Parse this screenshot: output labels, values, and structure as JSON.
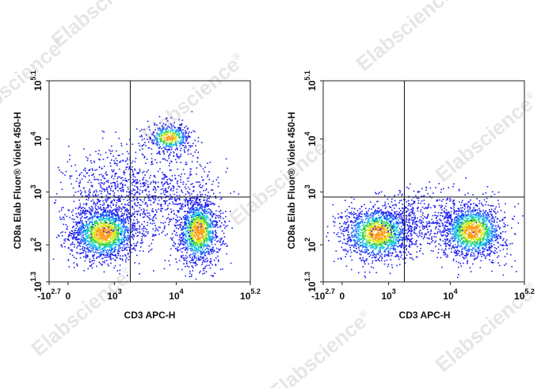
{
  "watermark": {
    "text": "Elabscience",
    "mark": "®"
  },
  "chart_data": [
    {
      "type": "scatter",
      "xlabel": "CD3 APC-H",
      "ylabel": "CD8a Elab Fluor® Violet 450-H",
      "x_scale": "biexponential",
      "y_scale": "log",
      "xlim": [
        -500,
        158489
      ],
      "ylim": [
        20,
        125893
      ],
      "x_ticks": [
        {
          "value": -500,
          "label": "-10",
          "exp": "2.7"
        },
        {
          "value": 0,
          "label": "0",
          "exp": ""
        },
        {
          "value": 1000,
          "label": "10",
          "exp": "3"
        },
        {
          "value": 10000,
          "label": "10",
          "exp": "4"
        },
        {
          "value": 158489,
          "label": "10",
          "exp": "5.2"
        }
      ],
      "y_ticks": [
        {
          "value": 20,
          "label": "10",
          "exp": "1.3"
        },
        {
          "value": 100,
          "label": "10",
          "exp": "2"
        },
        {
          "value": 1000,
          "label": "10",
          "exp": "3"
        },
        {
          "value": 10000,
          "label": "10",
          "exp": "4"
        },
        {
          "value": 125893,
          "label": "10",
          "exp": "5.1"
        }
      ],
      "gates": {
        "x": 1800,
        "y": 800
      },
      "populations": [
        {
          "x": 300,
          "y": 160,
          "density": "high"
        },
        {
          "x": 13000,
          "y": 170,
          "density": "high"
        },
        {
          "x": 6000,
          "y": 11000,
          "density": "medium"
        }
      ],
      "grid": false,
      "legend": "none"
    },
    {
      "type": "scatter",
      "xlabel": "CD3 APC-H",
      "ylabel": "CD8a Elab Fluor® Violet 450-H",
      "x_scale": "biexponential",
      "y_scale": "log",
      "xlim": [
        -500,
        158489
      ],
      "ylim": [
        20,
        125893
      ],
      "x_ticks": [
        {
          "value": -500,
          "label": "-10",
          "exp": "2.7"
        },
        {
          "value": 0,
          "label": "0",
          "exp": ""
        },
        {
          "value": 1000,
          "label": "10",
          "exp": "3"
        },
        {
          "value": 10000,
          "label": "10",
          "exp": "4"
        },
        {
          "value": 158489,
          "label": "10",
          "exp": "5.2"
        }
      ],
      "y_ticks": [
        {
          "value": 20,
          "label": "10",
          "exp": "1.3"
        },
        {
          "value": 100,
          "label": "10",
          "exp": "2"
        },
        {
          "value": 1000,
          "label": "10",
          "exp": "3"
        },
        {
          "value": 10000,
          "label": "10",
          "exp": "4"
        },
        {
          "value": 125893,
          "label": "10",
          "exp": "5.1"
        }
      ],
      "gates": {
        "x": 1800,
        "y": 800
      },
      "populations": [
        {
          "x": 350,
          "y": 160,
          "density": "high"
        },
        {
          "x": 13000,
          "y": 170,
          "density": "high"
        }
      ],
      "grid": false,
      "legend": "none"
    }
  ]
}
